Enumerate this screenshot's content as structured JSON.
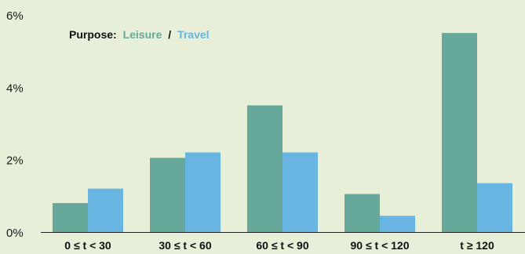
{
  "chart_data": {
    "type": "bar",
    "title": "",
    "xlabel": "",
    "ylabel": "",
    "categories": [
      "0 ≤ t < 30",
      "30 ≤ t < 60",
      "60 ≤ t < 90",
      "90 ≤ t < 120",
      "t ≥ 120"
    ],
    "series": [
      {
        "name": "Leisure",
        "values": [
          0.8,
          2.05,
          3.5,
          1.05,
          5.5
        ],
        "color": "#66a899"
      },
      {
        "name": "Travel",
        "values": [
          1.2,
          2.2,
          2.2,
          0.45,
          1.35
        ],
        "color": "#67b5e0"
      }
    ],
    "ylim": [
      0,
      6
    ],
    "yticks": [
      0,
      2,
      4,
      6
    ],
    "ytick_labels": [
      "0%",
      "2%",
      "4%",
      "6%"
    ],
    "grid": false,
    "legend": {
      "placement": "top-left",
      "prefix": "Purpose:",
      "separator": "/",
      "entries": [
        "Leisure",
        "Travel"
      ]
    }
  }
}
